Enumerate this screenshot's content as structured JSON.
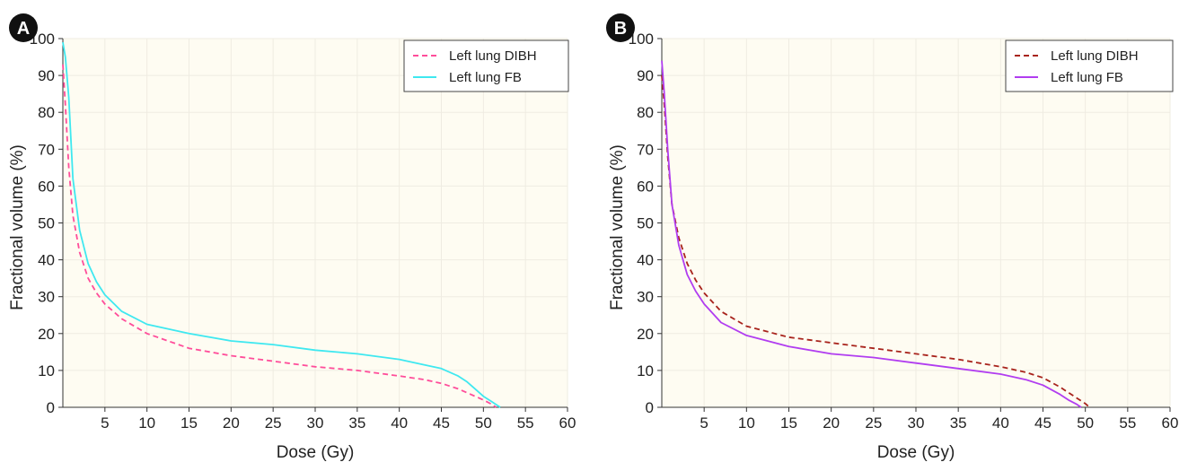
{
  "panels": [
    {
      "badge": "A",
      "chart_data": {
        "type": "line",
        "title": "",
        "xlabel": "Dose (Gy)",
        "ylabel": "Fractional volume (%)",
        "xlim": [
          0,
          60
        ],
        "ylim": [
          0,
          100
        ],
        "x_ticks": [
          "5",
          "10",
          "15",
          "20",
          "25",
          "30",
          "35",
          "40",
          "45",
          "50",
          "55",
          "60"
        ],
        "y_ticks": [
          "0",
          "10",
          "20",
          "30",
          "40",
          "50",
          "60",
          "70",
          "80",
          "90",
          "100"
        ],
        "grid": true,
        "legend_position": "top-right",
        "series": [
          {
            "name": "Left lung DIBH",
            "style": "dashed",
            "color": "#ff4d9a",
            "x": [
              0,
              0.3,
              0.7,
              1.2,
              2,
              3,
              4,
              5,
              7,
              10,
              15,
              20,
              25,
              30,
              35,
              40,
              43,
              45,
              47,
              49,
              50,
              51,
              51.5
            ],
            "y": [
              93,
              82,
              65,
              52,
              42,
              35,
              31,
              28,
              24,
              20,
              16,
              14,
              12.5,
              11,
              10,
              8.5,
              7.5,
              6.5,
              5,
              3,
              2,
              0.8,
              0
            ]
          },
          {
            "name": "Left lung FB",
            "style": "solid",
            "color": "#3fe8f0",
            "x": [
              0,
              0.3,
              0.7,
              1.2,
              2,
              3,
              4,
              5,
              7,
              10,
              15,
              20,
              25,
              30,
              35,
              40,
              43,
              45,
              47,
              48,
              49,
              50,
              51,
              52
            ],
            "y": [
              99,
              95,
              84,
              62,
              48,
              39,
              34,
              30.5,
              26,
              22.5,
              20,
              18,
              17,
              15.5,
              14.5,
              13,
              11.5,
              10.5,
              8.5,
              7,
              5,
              3,
              1.5,
              0
            ]
          }
        ]
      }
    },
    {
      "badge": "B",
      "chart_data": {
        "type": "line",
        "title": "",
        "xlabel": "Dose (Gy)",
        "ylabel": "Fractional volume (%)",
        "xlim": [
          0,
          60
        ],
        "ylim": [
          0,
          100
        ],
        "x_ticks": [
          "5",
          "10",
          "15",
          "20",
          "25",
          "30",
          "35",
          "40",
          "45",
          "50",
          "55",
          "60"
        ],
        "y_ticks": [
          "0",
          "10",
          "20",
          "30",
          "40",
          "50",
          "60",
          "70",
          "80",
          "90",
          "100"
        ],
        "grid": true,
        "legend_position": "top-right",
        "series": [
          {
            "name": "Left lung DIBH",
            "style": "dashed",
            "color": "#a8231c",
            "x": [
              0,
              0.3,
              0.7,
              1.2,
              2,
              3,
              4,
              5,
              7,
              10,
              15,
              20,
              25,
              30,
              35,
              40,
              43,
              45,
              47,
              49,
              50,
              50.5
            ],
            "y": [
              90,
              82,
              68,
              55,
              46,
              39,
              34.5,
              31,
              26,
              22,
              19,
              17.5,
              16,
              14.5,
              13,
              11,
              9.5,
              8,
              5.5,
              2.5,
              1,
              0
            ]
          },
          {
            "name": "Left lung FB",
            "style": "solid",
            "color": "#b13df0",
            "x": [
              0,
              0.3,
              0.7,
              1.2,
              2,
              3,
              4,
              5,
              7,
              10,
              15,
              20,
              25,
              30,
              35,
              40,
              43,
              45,
              47,
              48,
              49,
              49.5
            ],
            "y": [
              94,
              85,
              70,
              55,
              44,
              36,
              31.5,
              28,
              23,
              19.5,
              16.5,
              14.5,
              13.5,
              12,
              10.5,
              9,
              7.5,
              6,
              3.5,
              2,
              0.8,
              0
            ]
          }
        ]
      }
    }
  ]
}
